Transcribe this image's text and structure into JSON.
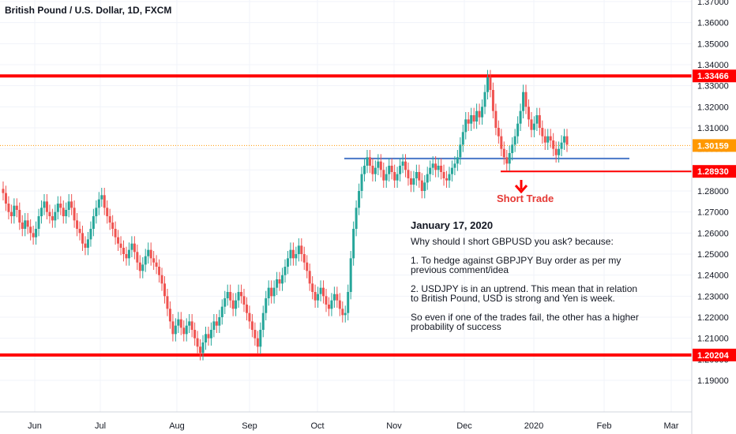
{
  "header": {
    "title": "British Pound / U.S. Dollar, 1D, FXCM"
  },
  "note": {
    "date": "January 17, 2020",
    "question": "Why should I short GBPUSD you ask? because:",
    "point1": "1. To hedge against GBPJPY Buy order as per my previous comment/idea",
    "point2": "2. USDJPY is in an uptrend. This mean that in relation to British Pound, USD is strong and Yen is week.",
    "conclusion": "So even if one of the trades fail, the other has a higher probability of success"
  },
  "annotation": {
    "short_trade": "Short Trade"
  },
  "colors": {
    "up": "#26a69a",
    "down": "#ef5350",
    "level": "#ff0000",
    "support": "#4a78c8",
    "current": "#ff9800"
  },
  "chart_data": {
    "type": "candlestick",
    "title": "British Pound / U.S. Dollar, 1D, FXCM",
    "ylim": [
      1.185,
      1.37
    ],
    "y_ticks": [
      "1.19000",
      "1.20000",
      "1.21000",
      "1.22000",
      "1.23000",
      "1.24000",
      "1.25000",
      "1.26000",
      "1.27000",
      "1.28000",
      "1.29000",
      "1.30000",
      "1.31000",
      "1.32000",
      "1.33000",
      "1.34000",
      "1.35000",
      "1.36000",
      "1.37000"
    ],
    "x_ticks": [
      "Jun",
      "Jul",
      "Aug",
      "Sep",
      "Oct",
      "Nov",
      "Dec",
      "2020",
      "Feb",
      "Mar"
    ],
    "horizontal_levels": [
      {
        "value": 1.33466,
        "label": "1.33466",
        "color": "#ff0000",
        "style": "resistance"
      },
      {
        "value": 1.20204,
        "label": "1.20204",
        "color": "#ff0000",
        "style": "support"
      },
      {
        "value": 1.2893,
        "label": "1.28930",
        "color": "#ff0000",
        "style": "target"
      },
      {
        "value": 1.2954,
        "label": "",
        "color": "#4a78c8",
        "style": "neckline"
      }
    ],
    "last_price": {
      "value": 1.30159,
      "label": "1.30159"
    },
    "series_ohlc": [
      [
        1.281,
        1.279
      ],
      [
        1.279,
        1.274
      ],
      [
        1.274,
        1.27
      ],
      [
        1.27,
        1.268
      ],
      [
        1.268,
        1.273
      ],
      [
        1.273,
        1.271
      ],
      [
        1.271,
        1.265
      ],
      [
        1.265,
        1.262
      ],
      [
        1.262,
        1.266
      ],
      [
        1.266,
        1.263
      ],
      [
        1.263,
        1.26
      ],
      [
        1.26,
        1.258
      ],
      [
        1.258,
        1.262
      ],
      [
        1.262,
        1.268
      ],
      [
        1.268,
        1.272
      ],
      [
        1.272,
        1.275
      ],
      [
        1.275,
        1.27
      ],
      [
        1.27,
        1.268
      ],
      [
        1.268,
        1.266
      ],
      [
        1.266,
        1.27
      ],
      [
        1.27,
        1.274
      ],
      [
        1.274,
        1.272
      ],
      [
        1.272,
        1.268
      ],
      [
        1.268,
        1.271
      ],
      [
        1.271,
        1.275
      ],
      [
        1.275,
        1.272
      ],
      [
        1.272,
        1.266
      ],
      [
        1.266,
        1.262
      ],
      [
        1.262,
        1.26
      ],
      [
        1.26,
        1.255
      ],
      [
        1.255,
        1.253
      ],
      [
        1.253,
        1.257
      ],
      [
        1.257,
        1.262
      ],
      [
        1.262,
        1.268
      ],
      [
        1.268,
        1.272
      ],
      [
        1.272,
        1.276
      ],
      [
        1.276,
        1.278
      ],
      [
        1.278,
        1.272
      ],
      [
        1.272,
        1.268
      ],
      [
        1.268,
        1.265
      ],
      [
        1.265,
        1.262
      ],
      [
        1.262,
        1.258
      ],
      [
        1.258,
        1.255
      ],
      [
        1.255,
        1.253
      ],
      [
        1.253,
        1.25
      ],
      [
        1.25,
        1.248
      ],
      [
        1.248,
        1.252
      ],
      [
        1.252,
        1.255
      ],
      [
        1.255,
        1.251
      ],
      [
        1.251,
        1.246
      ],
      [
        1.246,
        1.242
      ],
      [
        1.242,
        1.245
      ],
      [
        1.245,
        1.249
      ],
      [
        1.249,
        1.252
      ],
      [
        1.252,
        1.248
      ],
      [
        1.248,
        1.246
      ],
      [
        1.246,
        1.244
      ],
      [
        1.244,
        1.24
      ],
      [
        1.24,
        1.236
      ],
      [
        1.236,
        1.23
      ],
      [
        1.23,
        1.224
      ],
      [
        1.224,
        1.218
      ],
      [
        1.218,
        1.212
      ],
      [
        1.212,
        1.216
      ],
      [
        1.216,
        1.219
      ],
      [
        1.219,
        1.215
      ],
      [
        1.215,
        1.212
      ],
      [
        1.212,
        1.216
      ],
      [
        1.216,
        1.218
      ],
      [
        1.218,
        1.214
      ],
      [
        1.214,
        1.21
      ],
      [
        1.21,
        1.206
      ],
      [
        1.206,
        1.203
      ],
      [
        1.203,
        1.208
      ],
      [
        1.208,
        1.212
      ],
      [
        1.212,
        1.21
      ],
      [
        1.21,
        1.214
      ],
      [
        1.214,
        1.218
      ],
      [
        1.218,
        1.216
      ],
      [
        1.216,
        1.22
      ],
      [
        1.22,
        1.225
      ],
      [
        1.225,
        1.229
      ],
      [
        1.229,
        1.232
      ],
      [
        1.232,
        1.228
      ],
      [
        1.228,
        1.224
      ],
      [
        1.224,
        1.228
      ],
      [
        1.228,
        1.232
      ],
      [
        1.232,
        1.23
      ],
      [
        1.23,
        1.226
      ],
      [
        1.226,
        1.222
      ],
      [
        1.222,
        1.218
      ],
      [
        1.218,
        1.214
      ],
      [
        1.214,
        1.21
      ],
      [
        1.21,
        1.206
      ],
      [
        1.206,
        1.214
      ],
      [
        1.214,
        1.222
      ],
      [
        1.222,
        1.229
      ],
      [
        1.229,
        1.234
      ],
      [
        1.234,
        1.23
      ],
      [
        1.23,
        1.234
      ],
      [
        1.234,
        1.238
      ],
      [
        1.238,
        1.236
      ],
      [
        1.236,
        1.24
      ],
      [
        1.24,
        1.244
      ],
      [
        1.244,
        1.248
      ],
      [
        1.248,
        1.252
      ],
      [
        1.252,
        1.248
      ],
      [
        1.248,
        1.25
      ],
      [
        1.25,
        1.254
      ],
      [
        1.254,
        1.25
      ],
      [
        1.25,
        1.246
      ],
      [
        1.246,
        1.242
      ],
      [
        1.242,
        1.236
      ],
      [
        1.236,
        1.232
      ],
      [
        1.232,
        1.228
      ],
      [
        1.228,
        1.231
      ],
      [
        1.231,
        1.234
      ],
      [
        1.234,
        1.23
      ],
      [
        1.23,
        1.226
      ],
      [
        1.226,
        1.224
      ],
      [
        1.224,
        1.228
      ],
      [
        1.228,
        1.231
      ],
      [
        1.231,
        1.228
      ],
      [
        1.228,
        1.224
      ],
      [
        1.224,
        1.221
      ],
      [
        1.221,
        1.222
      ],
      [
        1.222,
        1.232
      ],
      [
        1.232,
        1.248
      ],
      [
        1.248,
        1.262
      ],
      [
        1.262,
        1.272
      ],
      [
        1.272,
        1.28
      ],
      [
        1.28,
        1.288
      ],
      [
        1.288,
        1.292
      ],
      [
        1.292,
        1.296
      ],
      [
        1.296,
        1.292
      ],
      [
        1.292,
        1.288
      ],
      [
        1.288,
        1.291
      ],
      [
        1.291,
        1.294
      ],
      [
        1.294,
        1.29
      ],
      [
        1.29,
        1.285
      ],
      [
        1.285,
        1.288
      ],
      [
        1.288,
        1.292
      ],
      [
        1.292,
        1.289
      ],
      [
        1.289,
        1.285
      ],
      [
        1.285,
        1.288
      ],
      [
        1.288,
        1.292
      ],
      [
        1.292,
        1.294
      ],
      [
        1.294,
        1.29
      ],
      [
        1.29,
        1.286
      ],
      [
        1.286,
        1.283
      ],
      [
        1.283,
        1.286
      ],
      [
        1.286,
        1.289
      ],
      [
        1.289,
        1.285
      ],
      [
        1.285,
        1.28
      ],
      [
        1.28,
        1.284
      ],
      [
        1.284,
        1.288
      ],
      [
        1.288,
        1.291
      ],
      [
        1.291,
        1.293
      ],
      [
        1.293,
        1.29
      ],
      [
        1.29,
        1.292
      ],
      [
        1.292,
        1.289
      ],
      [
        1.289,
        1.286
      ],
      [
        1.286,
        1.285
      ],
      [
        1.285,
        1.288
      ],
      [
        1.288,
        1.291
      ],
      [
        1.291,
        1.293
      ],
      [
        1.293,
        1.296
      ],
      [
        1.296,
        1.302
      ],
      [
        1.302,
        1.308
      ],
      [
        1.308,
        1.314
      ],
      [
        1.314,
        1.312
      ],
      [
        1.312,
        1.316
      ],
      [
        1.316,
        1.313
      ],
      [
        1.313,
        1.318
      ],
      [
        1.318,
        1.315
      ],
      [
        1.315,
        1.32
      ],
      [
        1.32,
        1.327
      ],
      [
        1.327,
        1.334
      ],
      [
        1.334,
        1.328
      ],
      [
        1.328,
        1.318
      ],
      [
        1.318,
        1.31
      ],
      [
        1.31,
        1.306
      ],
      [
        1.306,
        1.3
      ],
      [
        1.3,
        1.296
      ],
      [
        1.296,
        1.293
      ],
      [
        1.293,
        1.298
      ],
      [
        1.298,
        1.302
      ],
      [
        1.302,
        1.306
      ],
      [
        1.306,
        1.312
      ],
      [
        1.312,
        1.318
      ],
      [
        1.318,
        1.327
      ],
      [
        1.327,
        1.32
      ],
      [
        1.32,
        1.314
      ],
      [
        1.314,
        1.309
      ],
      [
        1.309,
        1.312
      ],
      [
        1.312,
        1.316
      ],
      [
        1.316,
        1.31
      ],
      [
        1.31,
        1.306
      ],
      [
        1.306,
        1.303
      ],
      [
        1.303,
        1.306
      ],
      [
        1.306,
        1.304
      ],
      [
        1.304,
        1.3
      ],
      [
        1.3,
        1.297
      ],
      [
        1.297,
        1.3
      ],
      [
        1.3,
        1.303
      ],
      [
        1.303,
        1.306
      ],
      [
        1.306,
        1.302
      ]
    ]
  }
}
